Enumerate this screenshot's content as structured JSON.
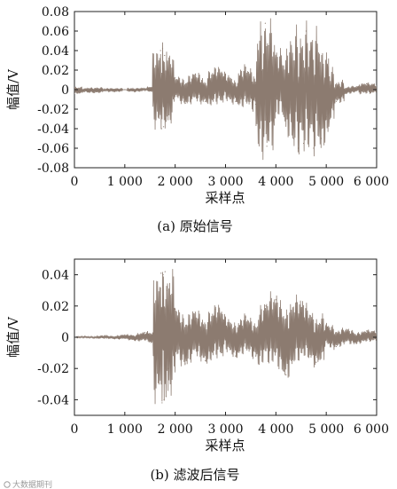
{
  "watermark": "大数据期刊",
  "chart_data": [
    {
      "type": "line",
      "caption": "(a)  原始信号",
      "xlabel": "采样点",
      "ylabel": "幅值/V",
      "xlim": [
        0,
        6000
      ],
      "ylim": [
        -0.08,
        0.08
      ],
      "xticks": [
        0,
        1000,
        2000,
        3000,
        4000,
        5000,
        6000
      ],
      "xtick_labels": [
        "0",
        "1 000",
        "2 000",
        "3 000",
        "4 000",
        "5 000",
        "6 000"
      ],
      "yticks": [
        0.08,
        0.06,
        0.04,
        0.02,
        0,
        -0.02,
        -0.04,
        -0.06,
        -0.08
      ],
      "ytick_labels": [
        "0.08",
        "0.06",
        "0.04",
        "0.02",
        "0",
        "-0.02",
        "-0.04",
        "-0.06",
        "-0.08"
      ],
      "grid": false,
      "color": "#8c7b70",
      "series": [
        {
          "x": [
            0,
            200,
            400,
            600,
            800,
            1000,
            1200,
            1400,
            1600,
            1700,
            1710,
            1730,
            1750,
            1770,
            1790,
            1810,
            1830,
            1850,
            1900,
            2000,
            2200,
            2400,
            2600,
            2800,
            3000,
            3200,
            3400,
            3600,
            3700,
            3760,
            3790,
            3820,
            3850,
            3900,
            3950,
            4000,
            4100,
            4200,
            4300,
            4350,
            4400,
            4450,
            4500,
            4550,
            4600,
            4650,
            4700,
            4750,
            4800,
            4900,
            5000,
            5200,
            5400,
            5600,
            5800,
            6000
          ],
          "y": [
            -0.004,
            -0.002,
            -0.003,
            -0.001,
            -0.002,
            0.0,
            -0.002,
            0.001,
            0.003,
            0.004,
            0.04,
            -0.04,
            0.042,
            -0.038,
            0.035,
            -0.03,
            0.02,
            -0.012,
            0.008,
            0.012,
            -0.014,
            0.016,
            -0.012,
            0.02,
            0.015,
            -0.012,
            0.022,
            -0.015,
            0.012,
            -0.045,
            0.068,
            -0.058,
            0.045,
            0.018,
            -0.01,
            0.025,
            0.035,
            -0.03,
            0.02,
            -0.05,
            0.05,
            -0.06,
            0.03,
            -0.055,
            0.06,
            -0.04,
            0.04,
            -0.06,
            0.035,
            -0.05,
            -0.028,
            -0.012,
            -0.004,
            0.003,
            0.006,
            0.004
          ]
        }
      ]
    },
    {
      "type": "line",
      "caption": "(b)  滤波后信号",
      "xlabel": "采样点",
      "ylabel": "幅值/V",
      "xlim": [
        0,
        6000
      ],
      "ylim": [
        -0.05,
        0.05
      ],
      "xticks": [
        0,
        1000,
        2000,
        3000,
        4000,
        5000,
        6000
      ],
      "xtick_labels": [
        "0",
        "1 000",
        "2 000",
        "3 000",
        "4 000",
        "5 000",
        "6 000"
      ],
      "yticks": [
        0.04,
        0.02,
        0,
        -0.02,
        -0.04
      ],
      "ytick_labels": [
        "0.04",
        "0.02",
        "0",
        "-0.02",
        "-0.04"
      ],
      "grid": false,
      "color": "#8c7b70",
      "series": [
        {
          "x": [
            0,
            200,
            400,
            600,
            800,
            1000,
            1200,
            1400,
            1600,
            1700,
            1720,
            1740,
            1760,
            1780,
            1800,
            1820,
            1840,
            1860,
            1900,
            2000,
            2200,
            2400,
            2600,
            2800,
            3000,
            3200,
            3400,
            3600,
            3800,
            4000,
            4200,
            4400,
            4600,
            4800,
            5000,
            5200,
            5400,
            5600,
            5800,
            6000
          ],
          "y": [
            0.0,
            0.0005,
            -0.0005,
            0.001,
            -0.001,
            0.0015,
            -0.002,
            0.003,
            -0.004,
            0.004,
            0.041,
            -0.042,
            0.04,
            -0.04,
            0.042,
            -0.038,
            0.03,
            -0.02,
            0.012,
            0.018,
            -0.017,
            0.016,
            -0.015,
            0.018,
            0.012,
            -0.012,
            0.013,
            -0.012,
            0.02,
            0.024,
            -0.024,
            0.022,
            0.018,
            -0.016,
            0.008,
            -0.006,
            0.005,
            -0.004,
            0.004,
            0.003
          ]
        }
      ]
    }
  ]
}
